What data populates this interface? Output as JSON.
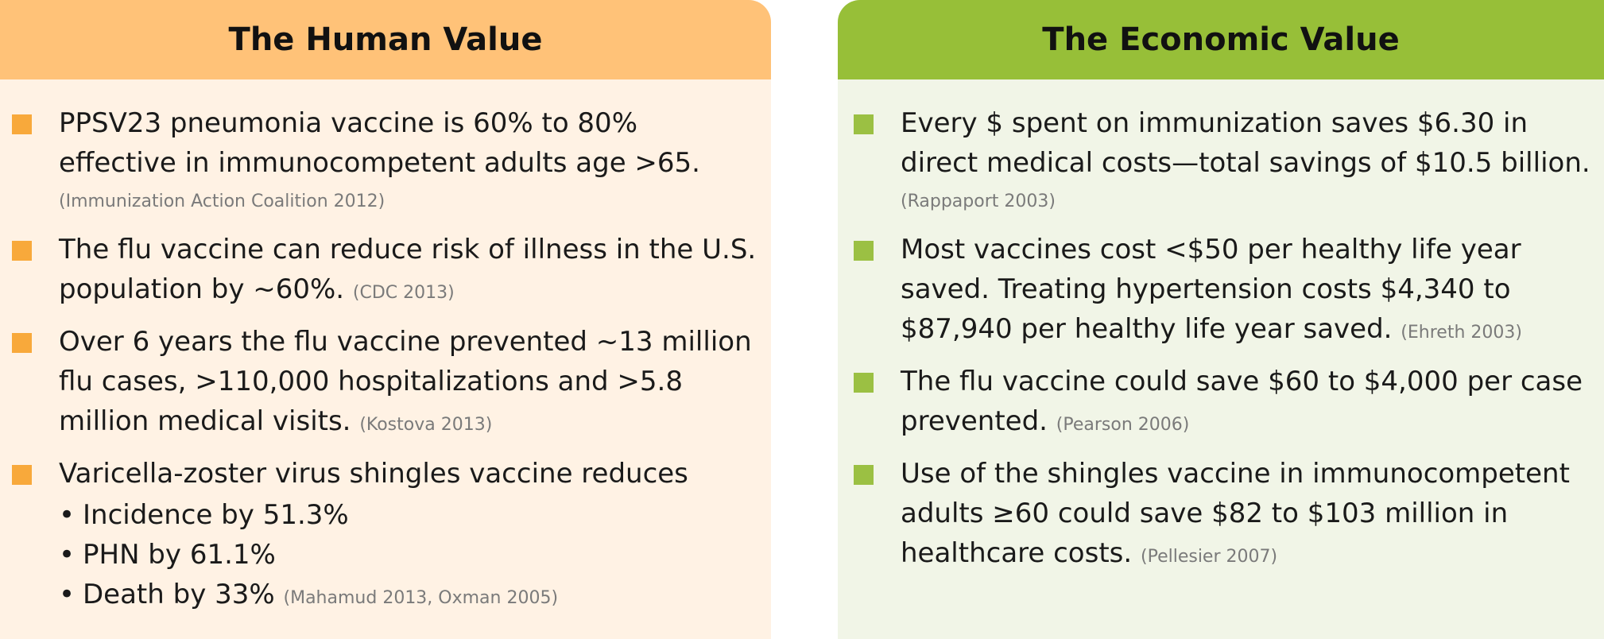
{
  "human": {
    "title": "The Human Value",
    "items": [
      {
        "text": "PPSV23 pneumonia vaccine is 60% to 80% effective in immunocompetent adults age >65.",
        "cite": "(Immunization Action Coalition 2012)"
      },
      {
        "text": "The flu vaccine can reduce risk of illness in the U.S. population by ~60%.",
        "cite": "(CDC 2013)"
      },
      {
        "text": "Over 6 years the flu vaccine prevented ~13 million flu cases, >110,000 hospitalizations and >5.8 million medical visits.",
        "cite": "(Kostova 2013)"
      },
      {
        "text": "Varicella-zoster virus shingles vaccine reduces",
        "sub_items": [
          "Incidence by 51.3%",
          "PHN by 61.1%",
          "Death by 33%"
        ],
        "cite": "(Mahamud 2013, Oxman 2005)"
      }
    ]
  },
  "economic": {
    "title": "The Economic Value",
    "items": [
      {
        "text": "Every $ spent on immunization saves $6.30 in direct medical costs—total savings of $10.5 billion.",
        "cite": "(Rappaport 2003)"
      },
      {
        "text": "Most vaccines cost <$50 per healthy life year saved. Treating hypertension costs $4,340 to $87,940 per healthy life year saved.",
        "cite": "(Ehreth 2003)"
      },
      {
        "text": "The flu vaccine could save $60 to $4,000 per case prevented.",
        "cite": "(Pearson 2006)"
      },
      {
        "text": "Use of the shingles vaccine in immunocompetent adults ≥60 could save $82 to $103 million in healthcare costs.",
        "cite": "(Pellesier 2007)"
      }
    ]
  },
  "colors": {
    "human_header": "#ffc278",
    "human_body": "#fff2e4",
    "human_bullet": "#f8a93b",
    "economic_header": "#97bf38",
    "economic_body": "#f1f5e7",
    "economic_bullet": "#9bc043"
  }
}
